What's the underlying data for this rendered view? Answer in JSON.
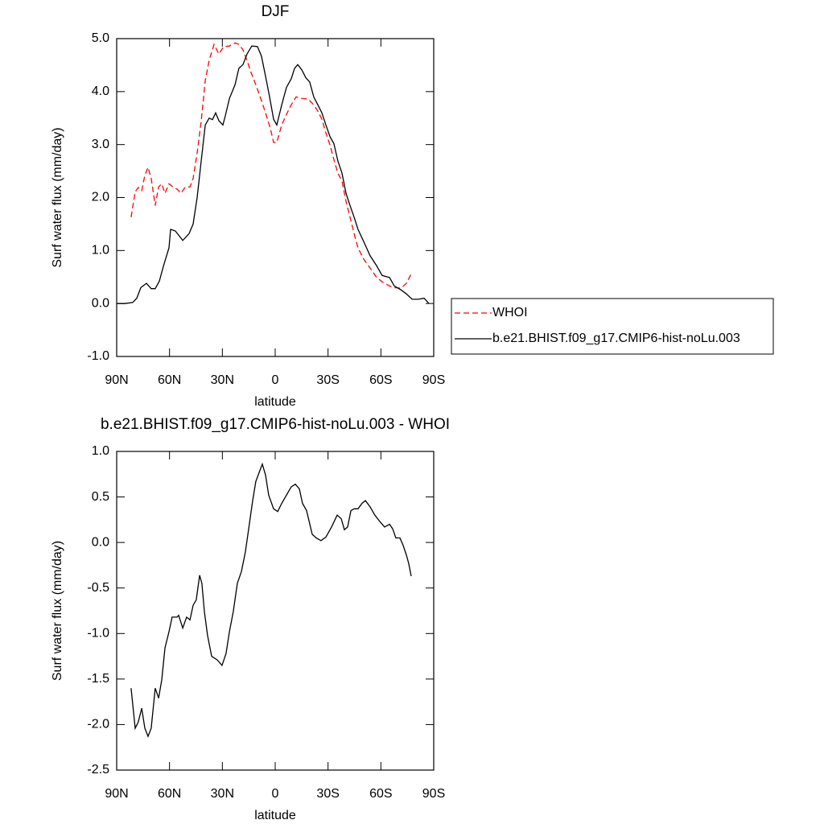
{
  "chart_data": [
    {
      "type": "line",
      "title": "DJF",
      "xlabel": "latitude",
      "ylabel": "Surf water flux (mm/day)",
      "xlim": [
        90,
        -90
      ],
      "xticks": [
        {
          "value": 90,
          "label": "90N"
        },
        {
          "value": 60,
          "label": "60N"
        },
        {
          "value": 30,
          "label": "30N"
        },
        0,
        {
          "value": -30,
          "label": "30S"
        },
        {
          "value": -60,
          "label": "60S"
        },
        {
          "value": -90,
          "label": "90S"
        }
      ],
      "ylim": [
        -1.0,
        5.0
      ],
      "yticks": [
        {
          "value": -1,
          "label": "-1.0"
        },
        {
          "value": 0,
          "label": "0.0"
        },
        {
          "value": 1,
          "label": "1.0"
        },
        {
          "value": 2,
          "label": "2.0"
        },
        {
          "value": 3,
          "label": "3.0"
        },
        {
          "value": 4,
          "label": "4.0"
        },
        {
          "value": 5,
          "label": "5.0"
        }
      ],
      "legend": "right",
      "series": [
        {
          "name": "WHOI",
          "color": "#ff0000",
          "style": "dashed",
          "x": [
            81.8,
            79.5,
            77.7,
            75.8,
            74.0,
            72.2,
            70.4,
            68.1,
            66.2,
            64.4,
            62.6,
            60.3,
            58.0,
            55.7,
            53.5,
            51.2,
            48.4,
            46.6,
            44.3,
            42.0,
            39.7,
            37.5,
            34.7,
            32.0,
            29.2,
            26.0,
            22.8,
            20.6,
            18.3,
            16.0,
            13.7,
            11.0,
            7.8,
            5.5,
            2.7,
            0.9,
            -0.9,
            -3.7,
            -6.4,
            -9.1,
            -11.9,
            -15.1,
            -18.7,
            -21.9,
            -24.2,
            -26.5,
            -28.8,
            -31.1,
            -33.3,
            -35.6,
            -37.9,
            -40.2,
            -42.5,
            -44.8,
            -47.0,
            -50.2,
            -53.9,
            -57.6,
            -60.7,
            -64.9,
            -67.6,
            -71.3,
            -74.5,
            -77.2
          ],
          "values": [
            1.63,
            2.11,
            2.19,
            2.13,
            2.42,
            2.57,
            2.36,
            1.85,
            2.2,
            2.26,
            2.08,
            2.26,
            2.2,
            2.16,
            2.08,
            2.19,
            2.2,
            2.36,
            2.84,
            3.45,
            4.21,
            4.59,
            4.89,
            4.71,
            4.85,
            4.86,
            4.92,
            4.89,
            4.79,
            4.59,
            4.36,
            4.13,
            3.83,
            3.6,
            3.3,
            3.04,
            3.04,
            3.37,
            3.57,
            3.75,
            3.9,
            3.87,
            3.86,
            3.75,
            3.63,
            3.48,
            3.22,
            2.99,
            2.72,
            2.46,
            2.31,
            1.93,
            1.63,
            1.32,
            1.05,
            0.84,
            0.67,
            0.49,
            0.41,
            0.33,
            0.3,
            0.29,
            0.38,
            0.56
          ]
        },
        {
          "name": "b.e21.BHIST.f09_g17.CMIP6-hist-noLu.003",
          "color": "#000000",
          "style": "solid",
          "x": [
            90,
            85.4,
            80.9,
            78.6,
            76.3,
            73.1,
            70.4,
            68.1,
            65.8,
            63.5,
            60.3,
            59.4,
            56.7,
            52.5,
            48.9,
            46.6,
            44.3,
            42.0,
            39.7,
            37.5,
            35.6,
            33.8,
            32.0,
            29.7,
            28.3,
            26.0,
            22.8,
            20.6,
            18.3,
            16.0,
            13.3,
            10.1,
            7.8,
            5.5,
            3.2,
            0.9,
            -0.9,
            -3.7,
            -6.4,
            -9.1,
            -11.0,
            -12.8,
            -15.1,
            -17.4,
            -19.6,
            -21.9,
            -24.2,
            -26.5,
            -28.8,
            -31.1,
            -33.3,
            -35.6,
            -37.9,
            -40.2,
            -42.5,
            -44.8,
            -47.0,
            -50.2,
            -53.9,
            -57.6,
            -60.7,
            -64.9,
            -67.6,
            -71.3,
            -74.5,
            -77.7,
            -81.3,
            -84.5,
            -87.3
          ],
          "values": [
            0.0,
            0.0,
            0.02,
            0.1,
            0.3,
            0.38,
            0.28,
            0.28,
            0.42,
            0.7,
            1.05,
            1.4,
            1.37,
            1.19,
            1.32,
            1.5,
            2.0,
            2.7,
            3.37,
            3.5,
            3.47,
            3.6,
            3.45,
            3.37,
            3.55,
            3.87,
            4.13,
            4.44,
            4.51,
            4.71,
            4.86,
            4.85,
            4.67,
            4.29,
            3.9,
            3.48,
            3.37,
            3.75,
            4.08,
            4.24,
            4.44,
            4.51,
            4.41,
            4.26,
            4.18,
            3.9,
            3.75,
            3.6,
            3.37,
            3.15,
            3.02,
            2.69,
            2.46,
            2.08,
            1.85,
            1.63,
            1.4,
            1.17,
            0.9,
            0.71,
            0.53,
            0.49,
            0.33,
            0.26,
            0.18,
            0.08,
            0.08,
            0.1,
            0.0
          ]
        }
      ]
    },
    {
      "type": "line",
      "title": "b.e21.BHIST.f09_g17.CMIP6-hist-noLu.003 - WHOI",
      "xlabel": "latitude",
      "ylabel": "Surf water flux (mm/day)",
      "xlim": [
        90,
        -90
      ],
      "xticks": [
        {
          "value": 90,
          "label": "90N"
        },
        {
          "value": 60,
          "label": "60N"
        },
        {
          "value": 30,
          "label": "30N"
        },
        0,
        {
          "value": -30,
          "label": "30S"
        },
        {
          "value": -60,
          "label": "60S"
        },
        {
          "value": -90,
          "label": "90S"
        }
      ],
      "ylim": [
        -2.5,
        1.0
      ],
      "yticks": [
        -2.5,
        {
          "value": -2,
          "label": "-2.0"
        },
        -1.5,
        {
          "value": -1,
          "label": "-1.0"
        },
        -0.5,
        {
          "value": 0,
          "label": "0.0"
        },
        0.5,
        {
          "value": 1,
          "label": "1.0"
        }
      ],
      "series": [
        {
          "color": "#000000",
          "style": "solid",
          "x": [
            81.8,
            79.5,
            77.7,
            75.8,
            74.0,
            72.2,
            70.4,
            68.1,
            66.2,
            64.4,
            62.6,
            60.3,
            58.5,
            55.7,
            54.8,
            52.5,
            50.3,
            48.4,
            46.6,
            44.8,
            42.9,
            41.6,
            40.2,
            38.4,
            36.1,
            32.9,
            30.2,
            27.9,
            26.0,
            23.8,
            21.5,
            19.2,
            16.9,
            14.6,
            12.8,
            11.0,
            9.1,
            7.3,
            5.5,
            3.7,
            0.9,
            -1.4,
            -3.7,
            -6.4,
            -9.1,
            -11.4,
            -13.7,
            -15.5,
            -17.8,
            -21.0,
            -23.3,
            -26.0,
            -28.8,
            -32.0,
            -35.2,
            -37.5,
            -39.3,
            -41.1,
            -43.0,
            -44.8,
            -47.0,
            -49.3,
            -51.2,
            -53.9,
            -56.6,
            -59.4,
            -62.1,
            -64.9,
            -66.7,
            -68.5,
            -70.8,
            -72.6,
            -74.5,
            -75.8,
            -77.2
          ],
          "values": [
            -1.6,
            -2.04,
            -1.97,
            -1.82,
            -2.04,
            -2.13,
            -2.04,
            -1.6,
            -1.71,
            -1.51,
            -1.16,
            -0.98,
            -0.82,
            -0.82,
            -0.8,
            -0.94,
            -0.82,
            -0.85,
            -0.69,
            -0.63,
            -0.36,
            -0.45,
            -0.76,
            -1.02,
            -1.25,
            -1.29,
            -1.35,
            -1.22,
            -0.98,
            -0.76,
            -0.45,
            -0.32,
            -0.1,
            0.21,
            0.46,
            0.67,
            0.77,
            0.86,
            0.74,
            0.52,
            0.37,
            0.34,
            0.43,
            0.52,
            0.61,
            0.64,
            0.59,
            0.43,
            0.35,
            0.09,
            0.05,
            0.02,
            0.06,
            0.17,
            0.3,
            0.26,
            0.14,
            0.17,
            0.35,
            0.37,
            0.37,
            0.43,
            0.46,
            0.39,
            0.3,
            0.23,
            0.17,
            0.2,
            0.15,
            0.05,
            0.05,
            -0.03,
            -0.14,
            -0.23,
            -0.37
          ]
        }
      ]
    }
  ]
}
